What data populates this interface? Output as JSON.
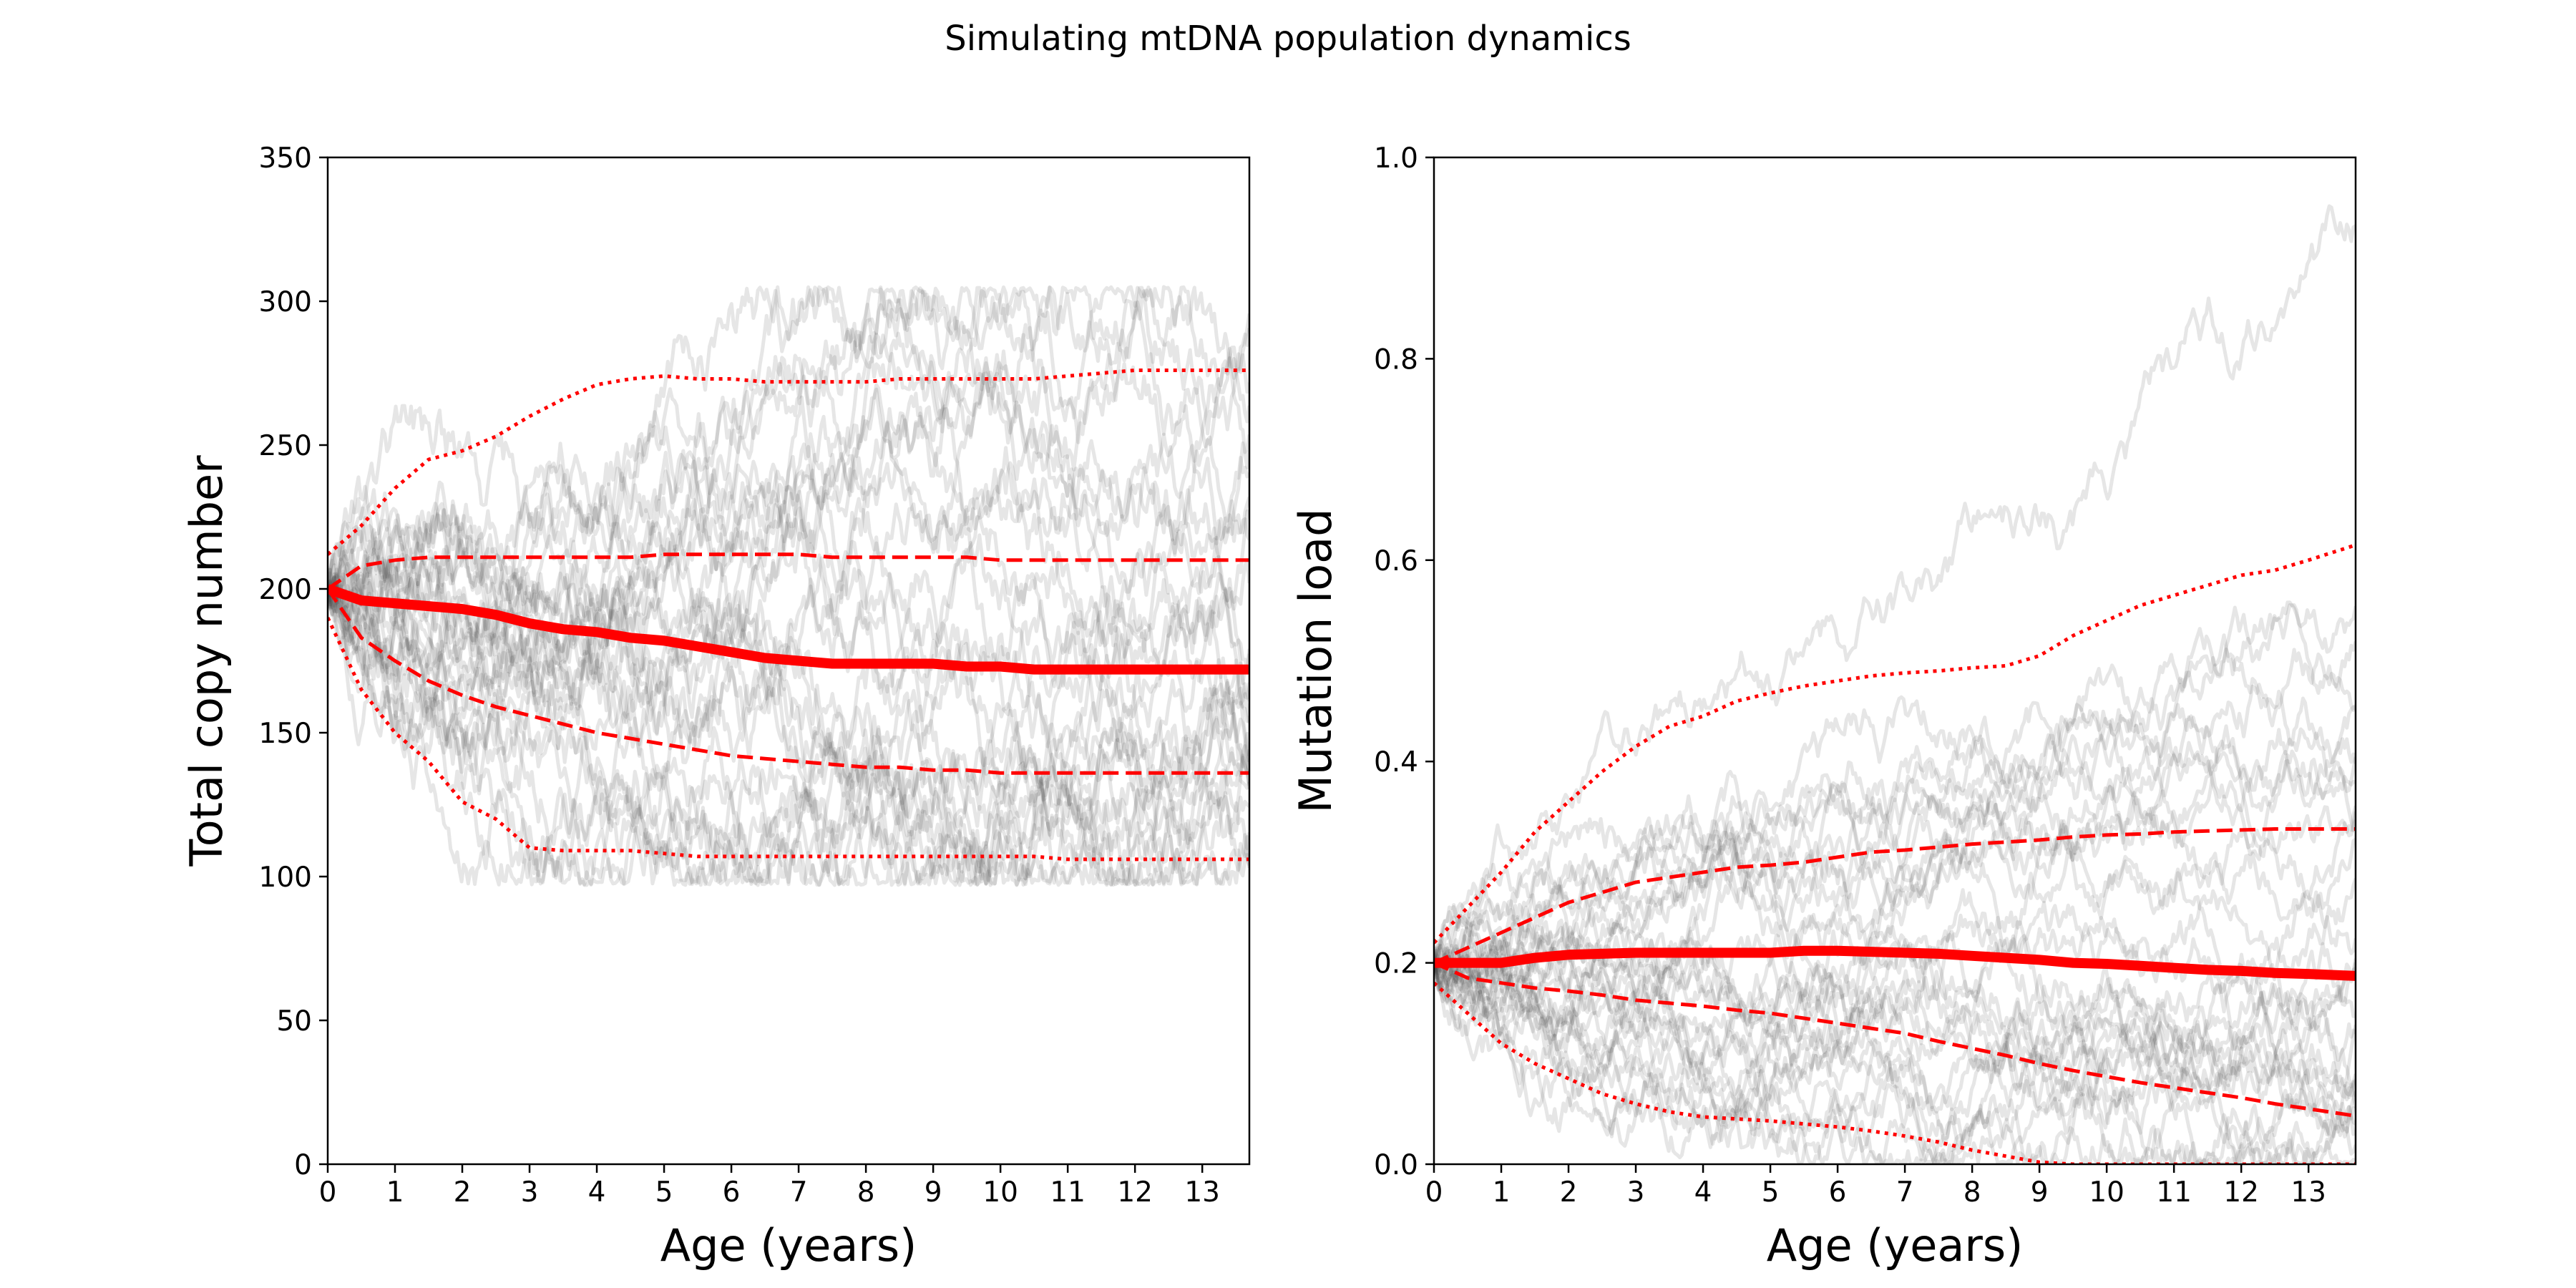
{
  "figure": {
    "suptitle": "Simulating mtDNA population dynamics"
  },
  "chart_data": [
    {
      "type": "line",
      "title": "",
      "xlabel": "Age (years)",
      "ylabel": "Total copy number",
      "xlim": [
        0,
        13.7
      ],
      "ylim": [
        0,
        350
      ],
      "xticks": [
        0,
        1,
        2,
        3,
        4,
        5,
        6,
        7,
        8,
        9,
        10,
        11,
        12,
        13
      ],
      "yticks": [
        0,
        50,
        100,
        150,
        200,
        250,
        300,
        350
      ],
      "grid": false,
      "legend": null,
      "colors": {
        "summary": "#ff0000",
        "simulations": "#3c3c3c"
      },
      "x": [
        0,
        0.5,
        1,
        1.5,
        2,
        2.5,
        3,
        3.5,
        4,
        4.5,
        5,
        5.5,
        6,
        6.5,
        7,
        7.5,
        8,
        8.5,
        9,
        9.5,
        10,
        10.5,
        11,
        11.5,
        12,
        12.5,
        13,
        13.7
      ],
      "series": [
        {
          "style": "thick",
          "values": [
            200,
            196,
            195,
            194,
            193,
            191,
            188,
            186,
            185,
            183,
            182,
            180,
            178,
            176,
            175,
            174,
            174,
            174,
            174,
            173,
            173,
            172,
            172,
            172,
            172,
            172,
            172,
            172
          ]
        },
        {
          "style": "dashed",
          "values": [
            200,
            208,
            210,
            211,
            211,
            211,
            211,
            211,
            211,
            211,
            212,
            212,
            212,
            212,
            212,
            211,
            211,
            211,
            211,
            211,
            210,
            210,
            210,
            210,
            210,
            210,
            210,
            210
          ]
        },
        {
          "style": "dashed",
          "values": [
            200,
            183,
            175,
            168,
            163,
            159,
            156,
            153,
            150,
            148,
            146,
            144,
            142,
            141,
            140,
            139,
            138,
            138,
            137,
            137,
            136,
            136,
            136,
            136,
            136,
            136,
            136,
            136
          ]
        },
        {
          "style": "dotted",
          "values": [
            212,
            222,
            235,
            245,
            248,
            253,
            260,
            266,
            271,
            273,
            274,
            273,
            273,
            272,
            272,
            272,
            272,
            273,
            273,
            273,
            273,
            273,
            274,
            275,
            276,
            276,
            276,
            276
          ]
        },
        {
          "style": "dotted",
          "values": [
            190,
            165,
            150,
            140,
            126,
            120,
            110,
            109,
            109,
            109,
            108,
            107,
            107,
            107,
            107,
            107,
            107,
            107,
            107,
            107,
            107,
            107,
            106,
            106,
            106,
            106,
            106,
            106
          ]
        }
      ],
      "simulation_runs": 30,
      "simulation_range": [
        97,
        305
      ]
    },
    {
      "type": "line",
      "title": "",
      "xlabel": "Age (years)",
      "ylabel": "Mutation load",
      "xlim": [
        0,
        13.7
      ],
      "ylim": [
        0.0,
        1.0
      ],
      "xticks": [
        0,
        1,
        2,
        3,
        4,
        5,
        6,
        7,
        8,
        9,
        10,
        11,
        12,
        13
      ],
      "yticks": [
        0.0,
        0.2,
        0.4,
        0.6,
        0.8,
        1.0
      ],
      "grid": false,
      "legend": null,
      "colors": {
        "summary": "#ff0000",
        "simulations": "#3c3c3c"
      },
      "x": [
        0,
        0.5,
        1,
        1.5,
        2,
        2.5,
        3,
        3.5,
        4,
        4.5,
        5,
        5.5,
        6,
        6.5,
        7,
        7.5,
        8,
        8.5,
        9,
        9.5,
        10,
        10.5,
        11,
        11.5,
        12,
        12.5,
        13,
        13.7
      ],
      "series": [
        {
          "style": "thick",
          "values": [
            0.2,
            0.2,
            0.2,
            0.205,
            0.208,
            0.209,
            0.21,
            0.21,
            0.21,
            0.21,
            0.21,
            0.212,
            0.212,
            0.211,
            0.21,
            0.209,
            0.207,
            0.205,
            0.203,
            0.2,
            0.199,
            0.197,
            0.195,
            0.193,
            0.192,
            0.19,
            0.189,
            0.187
          ]
        },
        {
          "style": "dashed",
          "values": [
            0.2,
            0.215,
            0.23,
            0.245,
            0.26,
            0.27,
            0.28,
            0.285,
            0.29,
            0.295,
            0.297,
            0.3,
            0.305,
            0.31,
            0.312,
            0.315,
            0.318,
            0.32,
            0.322,
            0.325,
            0.327,
            0.328,
            0.33,
            0.331,
            0.332,
            0.333,
            0.333,
            0.333
          ]
        },
        {
          "style": "dashed",
          "values": [
            0.2,
            0.185,
            0.18,
            0.175,
            0.172,
            0.168,
            0.163,
            0.16,
            0.157,
            0.153,
            0.15,
            0.145,
            0.14,
            0.135,
            0.13,
            0.122,
            0.115,
            0.108,
            0.1,
            0.093,
            0.087,
            0.081,
            0.076,
            0.071,
            0.066,
            0.06,
            0.055,
            0.048
          ]
        },
        {
          "style": "dotted",
          "values": [
            0.22,
            0.255,
            0.29,
            0.33,
            0.36,
            0.39,
            0.415,
            0.435,
            0.445,
            0.46,
            0.468,
            0.475,
            0.48,
            0.485,
            0.488,
            0.49,
            0.493,
            0.495,
            0.505,
            0.525,
            0.54,
            0.555,
            0.565,
            0.575,
            0.585,
            0.59,
            0.6,
            0.615
          ]
        },
        {
          "style": "dotted",
          "values": [
            0.18,
            0.15,
            0.12,
            0.1,
            0.085,
            0.07,
            0.06,
            0.052,
            0.047,
            0.045,
            0.043,
            0.04,
            0.037,
            0.033,
            0.028,
            0.022,
            0.014,
            0.008,
            0.002,
            0,
            0,
            0,
            0,
            0,
            0,
            0,
            0,
            0
          ]
        }
      ],
      "simulation_runs": 30,
      "simulation_range": [
        0.0,
        0.975
      ]
    }
  ]
}
